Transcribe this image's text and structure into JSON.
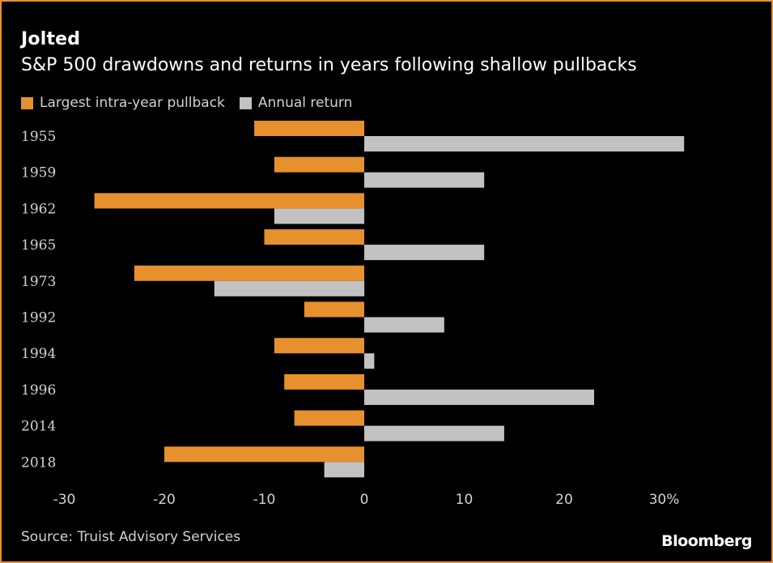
{
  "header": {
    "title": "Jolted",
    "subtitle": "S&P 500 drawdowns and returns in years following shallow pullbacks"
  },
  "legend": {
    "pullback_label": "Largest intra-year pullback",
    "return_label": "Annual return"
  },
  "footer": {
    "source": "Source: Truist Advisory Services",
    "brand": "Bloomberg"
  },
  "colors": {
    "pullback": "#e6902e",
    "return": "#c2c2c2",
    "background": "#000000",
    "text": "#d2d2d2"
  },
  "chart_data": {
    "type": "bar",
    "orientation": "horizontal",
    "title": "Jolted",
    "subtitle": "S&P 500 drawdowns and returns in years following shallow pullbacks",
    "categories": [
      "1955",
      "1959",
      "1962",
      "1965",
      "1973",
      "1992",
      "1994",
      "1996",
      "2014",
      "2018"
    ],
    "series": [
      {
        "name": "Largest intra-year pullback",
        "values": [
          -11,
          -9,
          -27,
          -10,
          -23,
          -6,
          -9,
          -8,
          -7,
          -20
        ]
      },
      {
        "name": "Annual return",
        "values": [
          32,
          12,
          -9,
          12,
          -15,
          8,
          1,
          23,
          14,
          -4
        ]
      }
    ],
    "xlim": [
      -30,
      30
    ],
    "xticks": [
      -30,
      -20,
      -10,
      0,
      10,
      20,
      30
    ],
    "xtick_labels": [
      "-30",
      "-20",
      "-10",
      "0",
      "10",
      "20",
      "30%"
    ],
    "xlabel": "",
    "ylabel": "",
    "legend_position": "top-left"
  }
}
